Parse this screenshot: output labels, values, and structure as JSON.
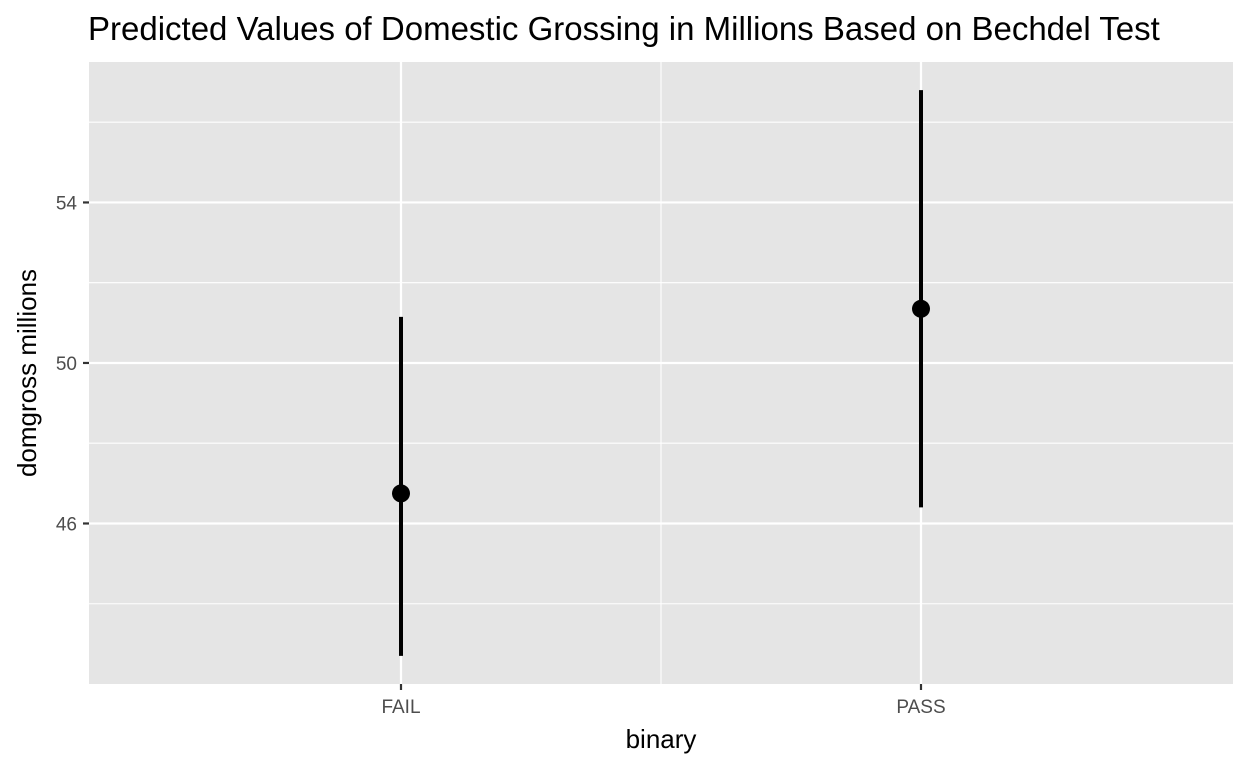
{
  "chart_data": {
    "type": "scatter",
    "title": "Predicted Values of Domestic Grossing in Millions Based on Bechdel Test",
    "xlabel": "binary",
    "ylabel": "domgross millions",
    "categories": [
      "FAIL",
      "PASS"
    ],
    "estimates": [
      46.75,
      51.35
    ],
    "ci_lower": [
      42.7,
      46.4
    ],
    "ci_upper": [
      51.15,
      56.8
    ],
    "ylim": [
      42.0,
      57.5
    ],
    "yticks": [
      46,
      50,
      54
    ],
    "grid": true,
    "legend": "none",
    "colors": {
      "panel": "#e5e5e5",
      "grid": "#ffffff",
      "point": "#000000"
    }
  }
}
